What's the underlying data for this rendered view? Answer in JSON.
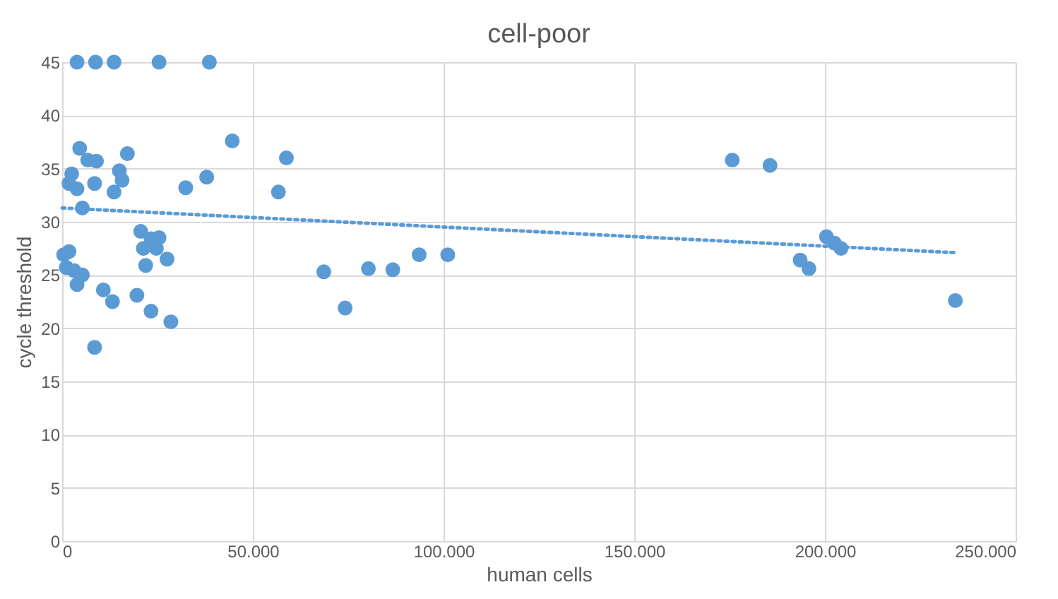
{
  "chart_data": {
    "type": "scatter",
    "title": "cell-poor",
    "xlabel": "human cells",
    "ylabel": "cycle threshold",
    "xlim": [
      0,
      250000
    ],
    "ylim": [
      0,
      45
    ],
    "xticks": [
      0,
      {
        "value": 50000,
        "label": "50.000"
      },
      {
        "value": 100000,
        "label": "100.000"
      },
      {
        "value": 150000,
        "label": "150.000"
      },
      {
        "value": 200000,
        "label": "200.000"
      },
      {
        "value": 250000,
        "label": "250.000"
      }
    ],
    "yticks": [
      0,
      5,
      10,
      15,
      20,
      25,
      30,
      35,
      40,
      45
    ],
    "grid": true,
    "series": [
      {
        "color": "#5b9bd5",
        "marker": "circle",
        "x": [
          3900,
          8750,
          13600,
          25400,
          38600,
          4600,
          6700,
          9000,
          17100,
          2500,
          8500,
          1800,
          3900,
          15000,
          15700,
          13600,
          32400,
          37900,
          44600,
          56700,
          58800,
          5300,
          20600,
          21300,
          23300,
          25400,
          24700,
          21900,
          27500,
          400,
          1800,
          1100,
          3200,
          5300,
          3900,
          10800,
          13200,
          19600,
          23300,
          28500,
          8500,
          68600,
          74200,
          80300,
          86700,
          93600,
          101100,
          175700,
          185600,
          193500,
          195800,
          200400,
          202500,
          204200,
          234200
        ],
        "values": [
          45,
          45,
          45,
          45,
          45,
          36.9,
          35.8,
          35.7,
          36.4,
          34.5,
          33.6,
          33.6,
          33.1,
          34.8,
          33.9,
          32.8,
          33.2,
          34.2,
          37.6,
          32.8,
          36.0,
          31.3,
          29.1,
          27.5,
          28.4,
          28.5,
          27.5,
          25.9,
          26.5,
          26.9,
          27.2,
          25.7,
          25.4,
          25.0,
          24.1,
          23.6,
          22.5,
          23.1,
          21.6,
          20.6,
          18.2,
          25.3,
          21.9,
          25.6,
          25.5,
          26.9,
          26.9,
          35.8,
          35.3,
          26.4,
          25.6,
          28.6,
          28.0,
          27.5,
          22.6
        ]
      },
      {
        "type": "line",
        "color": "#5b9bd5",
        "marker": "none",
        "line_style": "dotted",
        "x": [
          0,
          234200
        ],
        "values": [
          31.3,
          27.1
        ]
      }
    ]
  }
}
